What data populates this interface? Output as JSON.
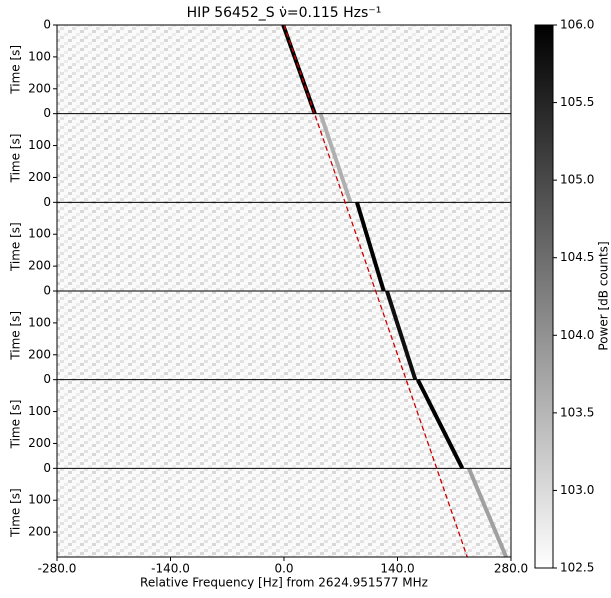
{
  "chart_data": {
    "type": "waterfall",
    "title": "HIP 56452_S ν̇=0.115 Hzs⁻¹",
    "xlabel": "Relative Frequency [Hz] from 2624.951577 MHz",
    "ylabel": "Time [s]",
    "xlim": [
      -280,
      280
    ],
    "xticks": [
      {
        "value": -280,
        "label": "-280.0"
      },
      {
        "value": -140,
        "label": "-140.0"
      },
      {
        "value": 0,
        "label": "0.0"
      },
      {
        "value": 140,
        "label": "140.0"
      },
      {
        "value": 280,
        "label": "280.0"
      }
    ],
    "ylim": [
      0,
      278
    ],
    "yticks": [
      0,
      100,
      200
    ],
    "colorbar_label": "Power [dB counts]",
    "clim": [
      102.5,
      106
    ],
    "cticks": [
      {
        "value": 102.5,
        "label": "102.5"
      },
      {
        "value": 103,
        "label": "103.0"
      },
      {
        "value": 103.5,
        "label": "103.5"
      },
      {
        "value": 104,
        "label": "104.0"
      },
      {
        "value": 104.5,
        "label": "104.5"
      },
      {
        "value": 105,
        "label": "105.0"
      },
      {
        "value": 105.5,
        "label": "105.5"
      },
      {
        "value": 106,
        "label": "106.0"
      }
    ],
    "drift_line": {
      "color": "#cc0000",
      "x": [
        0,
        226
      ]
    },
    "panels": [
      {
        "track_x": [
          -1,
          38
        ],
        "power": 106
      },
      {
        "track_x": [
          45,
          82
        ],
        "power": 103.6
      },
      {
        "track_x": [
          90,
          123
        ],
        "power": 106
      },
      {
        "track_x": [
          127,
          162
        ],
        "power": 105.8
      },
      {
        "track_x": [
          165,
          220
        ],
        "power": 106
      },
      {
        "track_x": [
          228,
          274
        ],
        "power": 103.8
      }
    ]
  }
}
